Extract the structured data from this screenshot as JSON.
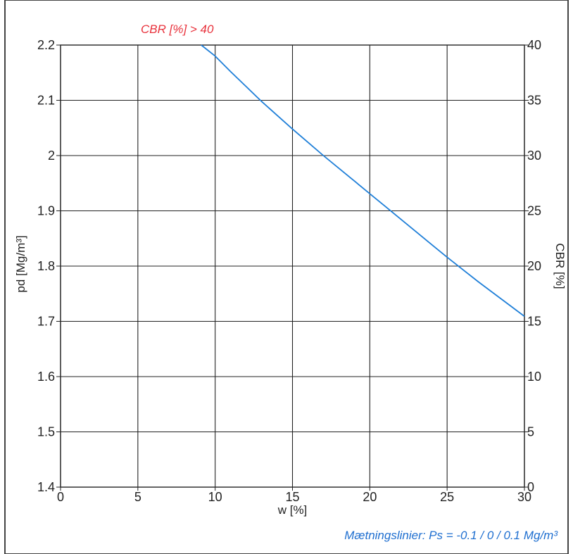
{
  "chart_data": {
    "type": "line",
    "x_axis": {
      "label": "w [%]",
      "range": [
        0,
        30
      ],
      "ticks": [
        0,
        5,
        10,
        15,
        20,
        25,
        30
      ]
    },
    "y_left_axis": {
      "label": "pd [Mg/m³]",
      "range": [
        1.4,
        2.2
      ],
      "ticks": [
        1.4,
        1.5,
        1.6,
        1.7,
        1.8,
        1.9,
        2,
        2.1,
        2.2
      ]
    },
    "y_right_axis": {
      "label": "CBR [%]",
      "range": [
        0,
        40
      ],
      "ticks": [
        0,
        5,
        10,
        15,
        20,
        25,
        30,
        35,
        40
      ]
    },
    "grid": true,
    "series": [
      {
        "color": "#1f7fd8",
        "axis": "left",
        "x": [
          9.1,
          10,
          11,
          12,
          13,
          14,
          15,
          16,
          17,
          18,
          19,
          20,
          21,
          22,
          23,
          24,
          25,
          26,
          27,
          28,
          29,
          30
        ],
        "y": [
          2.2,
          2.18,
          2.152,
          2.125,
          2.098,
          2.073,
          2.048,
          2.024,
          2.0,
          1.977,
          1.954,
          1.931,
          1.908,
          1.885,
          1.862,
          1.839,
          1.816,
          1.794,
          1.772,
          1.751,
          1.73,
          1.709
        ]
      }
    ],
    "annotations": [
      {
        "text": "CBR [%] > 40",
        "color": "#e8323c"
      },
      {
        "text": "Mætningslinier: Ps = -0.1 / 0 / 0.1 Mg/m³",
        "color": "#1f6fd0"
      }
    ]
  }
}
